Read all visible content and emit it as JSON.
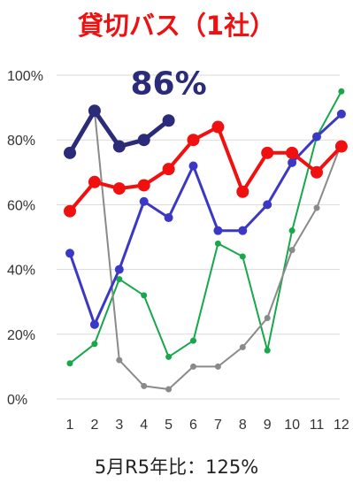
{
  "title": "貸切バス（1社）",
  "footer": "5月R5年比：125%",
  "chart_data": {
    "type": "line",
    "categories": [
      "1",
      "2",
      "3",
      "4",
      "5",
      "6",
      "7",
      "8",
      "9",
      "10",
      "11",
      "12"
    ],
    "ylim": [
      0,
      100
    ],
    "yticks": [
      0,
      20,
      40,
      60,
      80,
      100
    ],
    "ytick_labels": [
      "0%",
      "20%",
      "40%",
      "60%",
      "80%",
      "100%"
    ],
    "grid": true,
    "annotation": {
      "text": "86%",
      "color": "#2b2b7a",
      "at_x": 4,
      "at_y": 98
    },
    "series": [
      {
        "values": [
          11,
          17,
          37,
          32,
          13,
          18,
          48,
          44,
          15,
          52,
          81,
          95
        ],
        "color": "#16a84a",
        "width": 2,
        "marker": 3.5
      },
      {
        "values": [
          null,
          89,
          12,
          4,
          3,
          10,
          10,
          16,
          25,
          46,
          59,
          79
        ],
        "color": "#8a8a8a",
        "width": 2,
        "marker": 3.5
      },
      {
        "values": [
          45,
          23,
          40,
          61,
          56,
          72,
          52,
          52,
          60,
          73,
          81,
          88
        ],
        "color": "#3c38c6",
        "width": 3,
        "marker": 5
      },
      {
        "values": [
          58,
          67,
          65,
          66,
          71,
          80,
          84,
          64,
          76,
          76,
          70,
          78
        ],
        "color": "#f01010",
        "width": 4,
        "marker": 7
      },
      {
        "values": [
          76,
          89,
          78,
          80,
          86,
          null,
          null,
          null,
          null,
          null,
          null,
          null
        ],
        "color": "#2b2b7a",
        "width": 5,
        "marker": 7
      }
    ]
  }
}
